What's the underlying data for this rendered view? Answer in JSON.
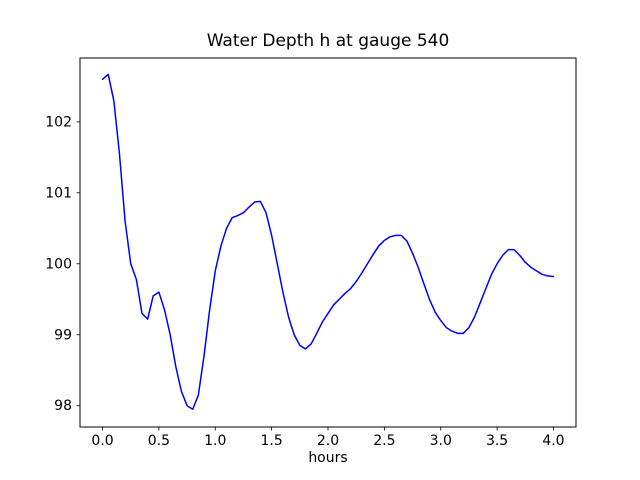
{
  "chart_data": {
    "type": "line",
    "title": "Water Depth h at gauge 540",
    "xlabel": "hours",
    "ylabel": "",
    "xlim": [
      -0.2,
      4.2
    ],
    "ylim": [
      97.7,
      102.9
    ],
    "xticks": [
      0.0,
      0.5,
      1.0,
      1.5,
      2.0,
      2.5,
      3.0,
      3.5,
      4.0
    ],
    "xtick_labels": [
      "0.0",
      "0.5",
      "1.0",
      "1.5",
      "2.0",
      "2.5",
      "3.0",
      "3.5",
      "4.0"
    ],
    "yticks": [
      98,
      99,
      100,
      101,
      102
    ],
    "ytick_labels": [
      "98",
      "99",
      "100",
      "101",
      "102"
    ],
    "grid": false,
    "legend": "none",
    "line_color": "#0000ff",
    "axis_color": "#000000",
    "background_color": "#ffffff",
    "series": [
      {
        "name": "h",
        "x": [
          0.0,
          0.05,
          0.1,
          0.15,
          0.2,
          0.25,
          0.3,
          0.35,
          0.4,
          0.45,
          0.5,
          0.55,
          0.6,
          0.65,
          0.7,
          0.75,
          0.8,
          0.85,
          0.9,
          0.95,
          1.0,
          1.05,
          1.1,
          1.15,
          1.2,
          1.25,
          1.3,
          1.35,
          1.4,
          1.45,
          1.5,
          1.55,
          1.6,
          1.65,
          1.7,
          1.75,
          1.8,
          1.85,
          1.9,
          1.95,
          2.0,
          2.05,
          2.1,
          2.15,
          2.2,
          2.25,
          2.3,
          2.35,
          2.4,
          2.45,
          2.5,
          2.55,
          2.6,
          2.65,
          2.7,
          2.75,
          2.8,
          2.85,
          2.9,
          2.95,
          3.0,
          3.05,
          3.1,
          3.15,
          3.2,
          3.25,
          3.3,
          3.35,
          3.4,
          3.45,
          3.5,
          3.55,
          3.6,
          3.65,
          3.7,
          3.75,
          3.8,
          3.85,
          3.9,
          3.95,
          4.0
        ],
        "y": [
          102.6,
          102.67,
          102.3,
          101.55,
          100.6,
          100.0,
          99.78,
          99.3,
          99.22,
          99.55,
          99.6,
          99.35,
          99.0,
          98.55,
          98.2,
          98.0,
          97.95,
          98.15,
          98.7,
          99.35,
          99.9,
          100.25,
          100.5,
          100.65,
          100.68,
          100.72,
          100.8,
          100.87,
          100.88,
          100.72,
          100.4,
          100.0,
          99.6,
          99.25,
          99.0,
          98.85,
          98.8,
          98.87,
          99.02,
          99.18,
          99.3,
          99.42,
          99.5,
          99.58,
          99.65,
          99.75,
          99.87,
          100.0,
          100.13,
          100.25,
          100.33,
          100.38,
          100.4,
          100.4,
          100.32,
          100.15,
          99.95,
          99.72,
          99.5,
          99.32,
          99.2,
          99.1,
          99.05,
          99.02,
          99.02,
          99.1,
          99.25,
          99.45,
          99.65,
          99.85,
          100.0,
          100.12,
          100.2,
          100.2,
          100.12,
          100.02,
          99.95,
          99.9,
          99.85,
          99.83,
          99.82
        ]
      }
    ]
  }
}
